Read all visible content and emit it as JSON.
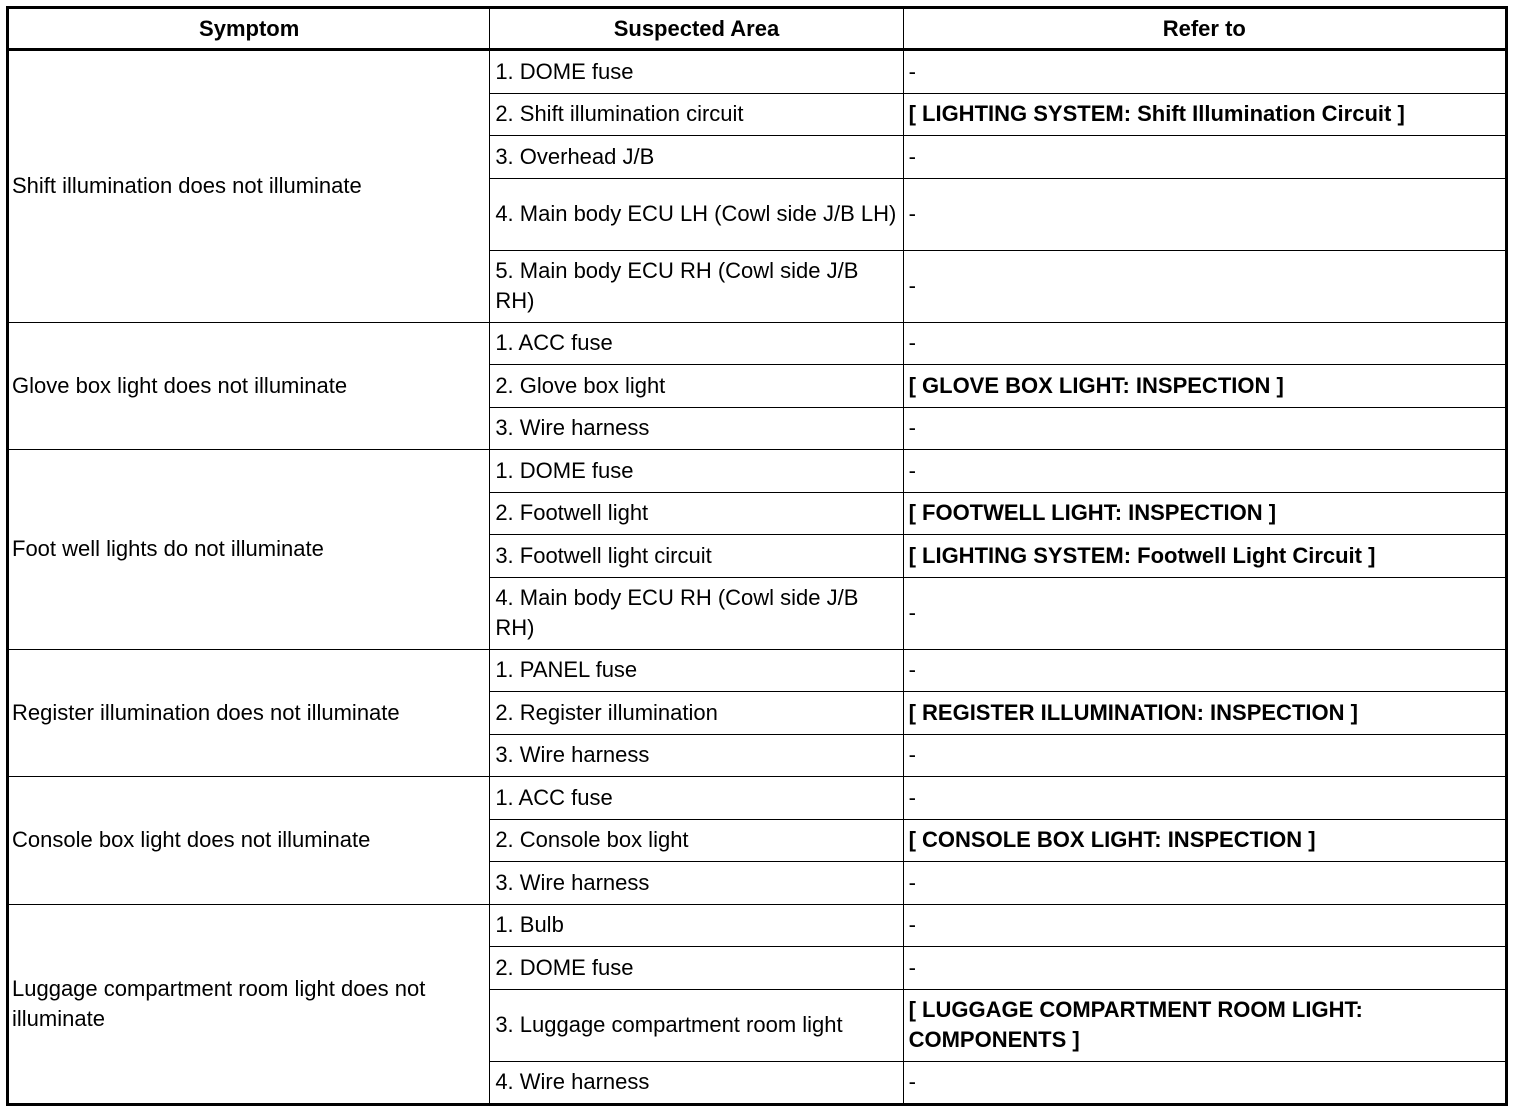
{
  "headers": [
    "Symptom",
    "Suspected Area",
    "Refer to"
  ],
  "groups": [
    {
      "symptom": "Shift illumination does not illuminate",
      "rows": [
        {
          "area": "1. DOME fuse",
          "ref": "-"
        },
        {
          "area": "2. Shift illumination circuit",
          "ref": "[ LIGHTING SYSTEM: Shift Illumination Circuit ]",
          "bold": true
        },
        {
          "area": "3. Overhead J/B",
          "ref": "-"
        },
        {
          "area": "4. Main body ECU LH (Cowl side J/B LH)",
          "ref": "-",
          "tall": true
        },
        {
          "area": "5. Main body ECU RH (Cowl side J/B RH)",
          "ref": "-",
          "tall": true
        }
      ]
    },
    {
      "symptom": "Glove box light does not illuminate",
      "rows": [
        {
          "area": "1. ACC fuse",
          "ref": "-"
        },
        {
          "area": "2. Glove box light",
          "ref": "[ GLOVE BOX LIGHT: INSPECTION ]",
          "bold": true
        },
        {
          "area": "3. Wire harness",
          "ref": "-"
        }
      ]
    },
    {
      "symptom": "Foot well lights do not illuminate",
      "rows": [
        {
          "area": "1. DOME fuse",
          "ref": "-"
        },
        {
          "area": "2. Footwell light",
          "ref": "[ FOOTWELL LIGHT: INSPECTION ]",
          "bold": true
        },
        {
          "area": "3. Footwell light circuit",
          "ref": "[ LIGHTING SYSTEM: Footwell Light Circuit ]",
          "bold": true
        },
        {
          "area": "4. Main body ECU RH (Cowl side J/B RH)",
          "ref": "-",
          "tall": true
        }
      ]
    },
    {
      "symptom": "Register illumination does not illuminate",
      "rows": [
        {
          "area": "1. PANEL fuse",
          "ref": "-"
        },
        {
          "area": "2. Register illumination",
          "ref": "[ REGISTER ILLUMINATION: INSPECTION ]",
          "bold": true
        },
        {
          "area": "3. Wire harness",
          "ref": "-"
        }
      ]
    },
    {
      "symptom": "Console box light does not illuminate",
      "rows": [
        {
          "area": "1. ACC fuse",
          "ref": "-"
        },
        {
          "area": "2. Console box light",
          "ref": "[ CONSOLE BOX LIGHT: INSPECTION ]",
          "bold": true
        },
        {
          "area": "3. Wire harness",
          "ref": "-"
        }
      ]
    },
    {
      "symptom": "Luggage compartment room light does not illuminate",
      "rows": [
        {
          "area": "1. Bulb",
          "ref": "-"
        },
        {
          "area": "2. DOME fuse",
          "ref": "-"
        },
        {
          "area": "3. Luggage compartment room light",
          "ref": "[ LUGGAGE COMPARTMENT ROOM LIGHT: COMPONENTS ]",
          "bold": true,
          "tall": true
        },
        {
          "area": "4. Wire harness",
          "ref": "-"
        }
      ]
    }
  ]
}
